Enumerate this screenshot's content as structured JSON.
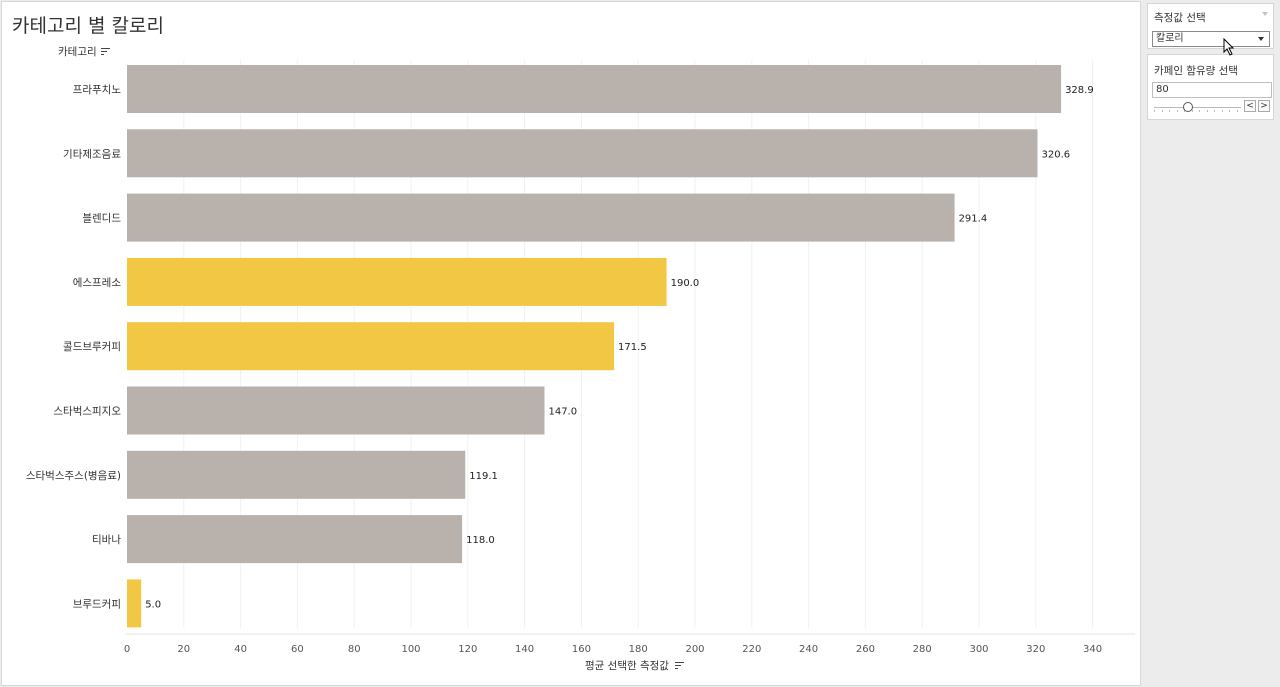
{
  "title": "카테고리 별 칼로리",
  "row_header": "카테고리",
  "x_axis_title": "평균 선택한 측정값",
  "colors": {
    "highlight": "#f2c744",
    "default": "#b9b1ac"
  },
  "chart_data": {
    "type": "bar",
    "orientation": "horizontal",
    "categories": [
      "프라푸치노",
      "기타제조음료",
      "블렌디드",
      "에스프레소",
      "콜드브루커피",
      "스타벅스피지오",
      "스타벅스주스(병음료)",
      "티바나",
      "브루드커피"
    ],
    "values": [
      328.9,
      320.6,
      291.4,
      190.0,
      171.5,
      147.0,
      119.1,
      118.0,
      5.0
    ],
    "value_labels": [
      "328.9",
      "320.6",
      "291.4",
      "190.0",
      "171.5",
      "147.0",
      "119.1",
      "118.0",
      "5.0"
    ],
    "highlighted": [
      false,
      false,
      false,
      true,
      true,
      false,
      false,
      false,
      true
    ],
    "xlim": [
      0,
      350
    ],
    "xticks": [
      0,
      20,
      40,
      60,
      80,
      100,
      120,
      140,
      160,
      180,
      200,
      220,
      240,
      260,
      280,
      300,
      320,
      340
    ],
    "xlabel": "평균 선택한 측정값",
    "ylabel": "카테고리",
    "grid": true,
    "legend": "none"
  },
  "controls": {
    "measure_select": {
      "title": "측정값 선택",
      "value": "칼로리"
    },
    "caffeine": {
      "title": "카페인 함유량 선택",
      "value": "80",
      "prev": "<",
      "next": ">"
    }
  }
}
